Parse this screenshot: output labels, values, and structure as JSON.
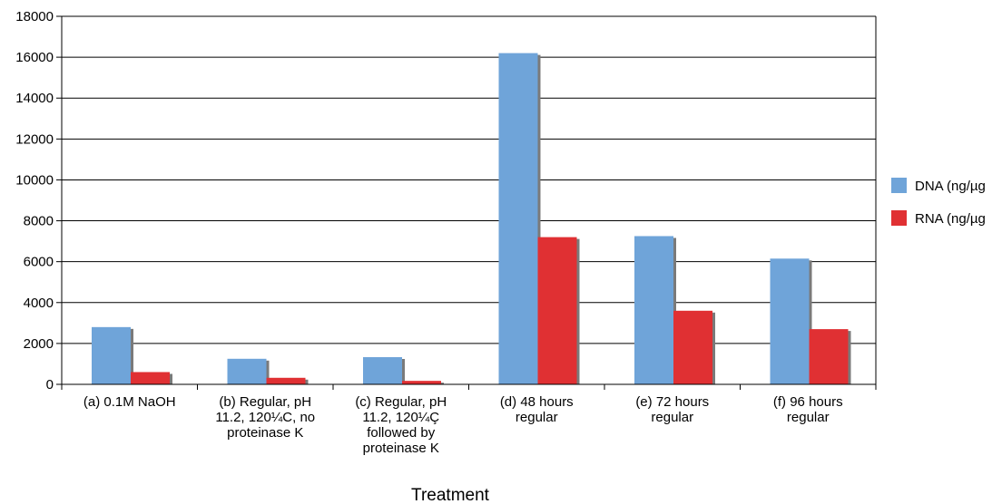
{
  "chart_data": {
    "type": "bar",
    "title": "",
    "xlabel": "Treatment",
    "ylabel": "",
    "ylim": [
      0,
      18000
    ],
    "yticks": [
      0,
      2000,
      4000,
      6000,
      8000,
      10000,
      12000,
      14000,
      16000,
      18000
    ],
    "grid": true,
    "legend_position": "right",
    "categories": [
      [
        "(a) 0.1M NaOH"
      ],
      [
        "(b) Regular, pH",
        "11.2, 120¼C, no",
        "proteinase K"
      ],
      [
        "(c) Regular, pH",
        "11.2, 120¼Ç",
        "followed by",
        "proteinase K"
      ],
      [
        "(d) 48 hours",
        "regular"
      ],
      [
        "(e) 72 hours",
        "regular"
      ],
      [
        "(f) 96 hours",
        "regular"
      ]
    ],
    "series": [
      {
        "name": "DNA (ng/µg",
        "color": "#6fa4d9",
        "values": [
          2800,
          1250,
          1330,
          16200,
          7250,
          6150
        ]
      },
      {
        "name": "RNA (ng/µg",
        "color": "#e03033",
        "values": [
          600,
          320,
          170,
          7200,
          3600,
          2700
        ]
      }
    ]
  }
}
